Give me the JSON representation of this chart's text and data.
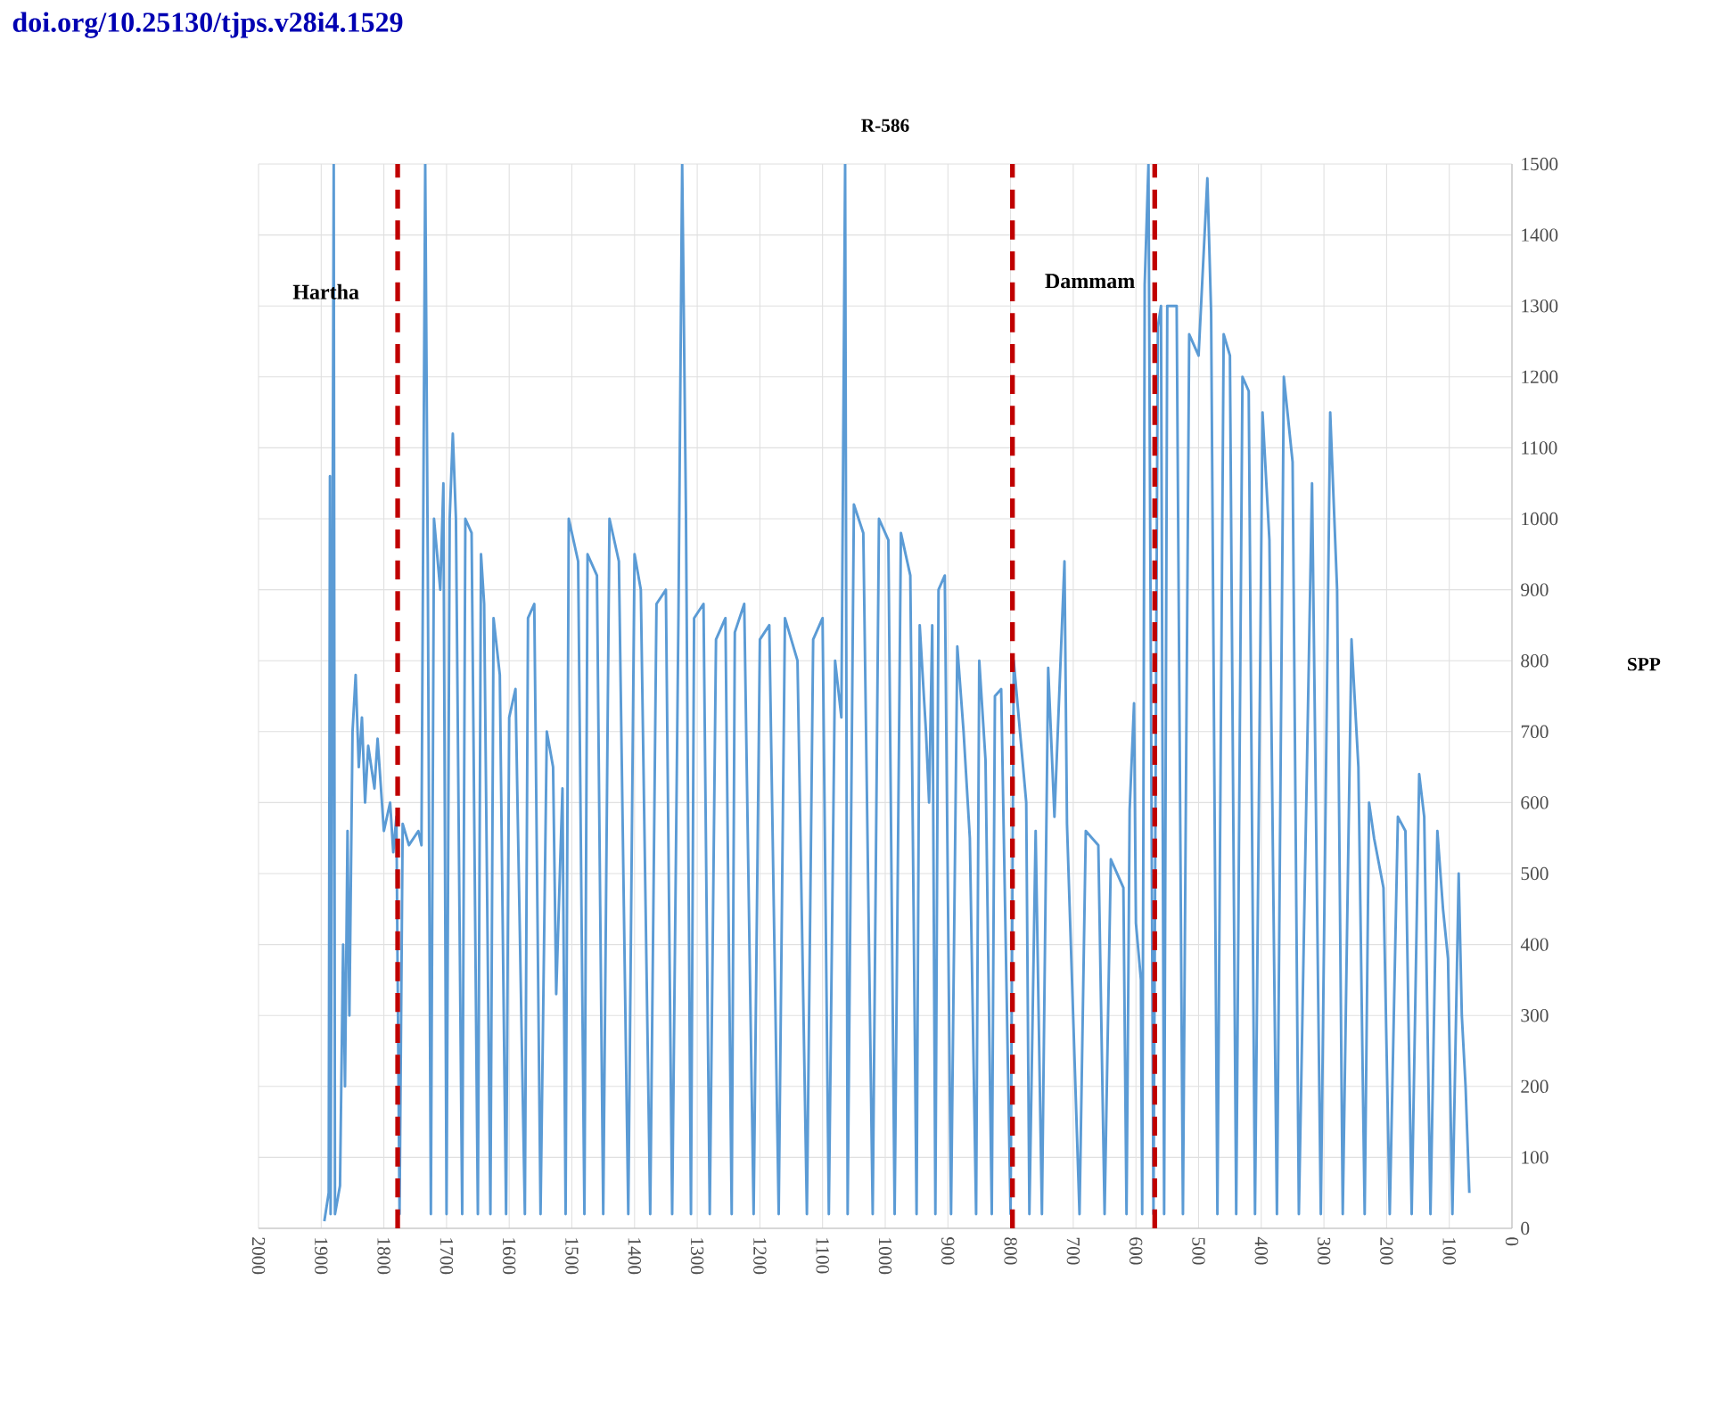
{
  "chart_data": {
    "type": "line",
    "title": "R-586",
    "ylabel": "SPP",
    "annotations": [
      "doi.org/10.25130/tjps.v28i4.1529",
      "Hartha",
      "Dammam"
    ],
    "xlim": [
      2000,
      0
    ],
    "xticks": [
      2000,
      1900,
      1800,
      1700,
      1600,
      1500,
      1400,
      1300,
      1200,
      1100,
      1000,
      900,
      800,
      700,
      600,
      500,
      400,
      300,
      200,
      100,
      0
    ],
    "ylim": [
      0,
      1500
    ],
    "yticks": [
      0,
      100,
      200,
      300,
      400,
      500,
      600,
      700,
      800,
      900,
      1000,
      1100,
      1200,
      1300,
      1400,
      1500
    ],
    "grid": true,
    "marker": "none",
    "line_style": "solid",
    "ref_lines": [
      {
        "axis": "x",
        "value": 1778,
        "color": "#c00000",
        "line_style": "dashed"
      },
      {
        "axis": "x",
        "value": 797,
        "color": "#c00000",
        "line_style": "dashed"
      },
      {
        "axis": "x",
        "value": 570,
        "color": "#c00000",
        "line_style": "dashed"
      }
    ],
    "series": [
      {
        "color": "#5b9bd5",
        "x": [
          1895,
          1888,
          1886,
          1885,
          1880,
          1878,
          1870,
          1865,
          1862,
          1858,
          1855,
          1850,
          1845,
          1840,
          1835,
          1830,
          1825,
          1815,
          1810,
          1800,
          1790,
          1785,
          1780,
          1775,
          1770,
          1760,
          1745,
          1740,
          1734,
          1730,
          1725,
          1720,
          1710,
          1705,
          1700,
          1695,
          1690,
          1685,
          1675,
          1670,
          1660,
          1650,
          1645,
          1640,
          1630,
          1625,
          1615,
          1605,
          1600,
          1590,
          1575,
          1570,
          1560,
          1550,
          1540,
          1530,
          1525,
          1515,
          1510,
          1505,
          1490,
          1480,
          1475,
          1460,
          1450,
          1440,
          1425,
          1410,
          1400,
          1390,
          1375,
          1365,
          1350,
          1340,
          1330,
          1324,
          1318,
          1310,
          1305,
          1290,
          1280,
          1270,
          1255,
          1245,
          1240,
          1225,
          1210,
          1200,
          1185,
          1170,
          1160,
          1140,
          1125,
          1115,
          1100,
          1090,
          1080,
          1070,
          1064,
          1060,
          1050,
          1035,
          1020,
          1010,
          995,
          985,
          975,
          960,
          950,
          945,
          935,
          930,
          925,
          920,
          915,
          905,
          895,
          885,
          875,
          865,
          855,
          850,
          840,
          830,
          825,
          815,
          800,
          795,
          785,
          775,
          770,
          760,
          750,
          740,
          730,
          714,
          710,
          690,
          680,
          660,
          650,
          640,
          620,
          615,
          610,
          603,
          600,
          592,
          590,
          588,
          586,
          580,
          572,
          565,
          560,
          555,
          550,
          535,
          525,
          515,
          500,
          486,
          480,
          470,
          460,
          450,
          440,
          430,
          420,
          410,
          398,
          387,
          375,
          364,
          350,
          340,
          319,
          305,
          290,
          279,
          270,
          256,
          245,
          235,
          228,
          220,
          205,
          195,
          182,
          170,
          160,
          148,
          140,
          130,
          119,
          110,
          102,
          95,
          85,
          80,
          74,
          68
        ],
        "values": [
          10,
          50,
          1060,
          20,
          1500,
          20,
          60,
          400,
          200,
          560,
          300,
          700,
          780,
          650,
          720,
          600,
          680,
          620,
          690,
          560,
          600,
          530,
          580,
          20,
          570,
          540,
          560,
          540,
          1500,
          950,
          20,
          1000,
          900,
          1050,
          20,
          1000,
          1120,
          1000,
          20,
          1000,
          980,
          20,
          950,
          880,
          20,
          860,
          780,
          20,
          720,
          760,
          20,
          860,
          880,
          20,
          700,
          650,
          330,
          620,
          20,
          1000,
          940,
          20,
          950,
          920,
          20,
          1000,
          940,
          20,
          950,
          900,
          20,
          880,
          900,
          20,
          860,
          1500,
          1010,
          20,
          860,
          880,
          20,
          830,
          860,
          20,
          840,
          880,
          20,
          830,
          850,
          20,
          860,
          800,
          20,
          830,
          860,
          20,
          800,
          720,
          1500,
          20,
          1020,
          980,
          20,
          1000,
          970,
          20,
          980,
          920,
          20,
          850,
          700,
          600,
          850,
          20,
          900,
          920,
          20,
          820,
          700,
          550,
          20,
          800,
          660,
          20,
          750,
          760,
          20,
          800,
          700,
          600,
          20,
          560,
          20,
          790,
          580,
          940,
          570,
          20,
          560,
          540,
          20,
          520,
          480,
          20,
          590,
          740,
          430,
          350,
          20,
          600,
          1330,
          1500,
          20,
          1270,
          1300,
          20,
          1300,
          1300,
          20,
          1260,
          1230,
          1480,
          1290,
          20,
          1260,
          1230,
          20,
          1200,
          1180,
          20,
          1150,
          970,
          20,
          1200,
          1080,
          20,
          1050,
          20,
          1150,
          900,
          20,
          830,
          650,
          20,
          600,
          550,
          480,
          20,
          580,
          560,
          20,
          640,
          580,
          20,
          560,
          450,
          380,
          20,
          500,
          300,
          200,
          50
        ]
      }
    ]
  }
}
